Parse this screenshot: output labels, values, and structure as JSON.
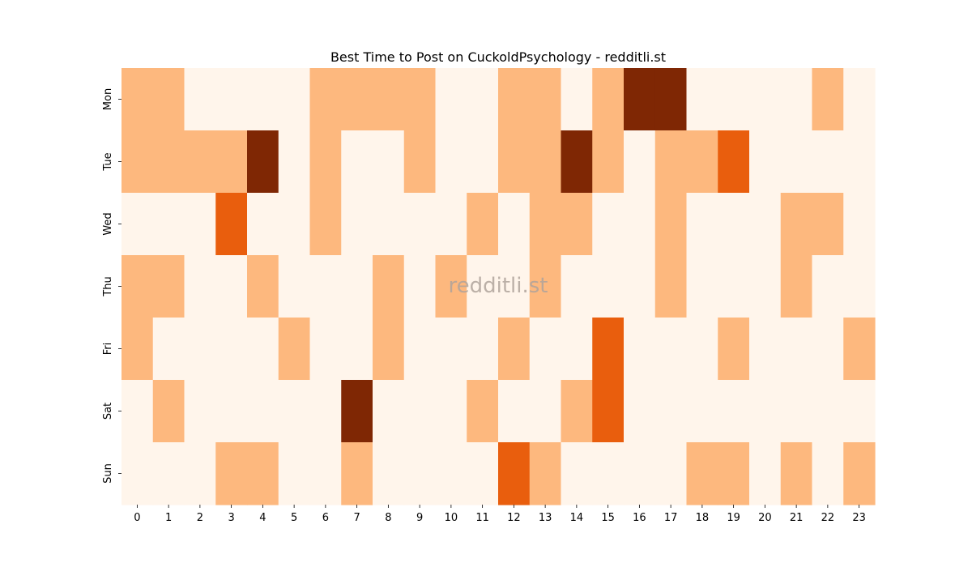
{
  "chart_data": {
    "type": "heatmap",
    "title": "Best Time to Post on CuckoldPsychology - redditli.st",
    "watermark": "redditli.st",
    "x_categories": [
      "0",
      "1",
      "2",
      "3",
      "4",
      "5",
      "6",
      "7",
      "8",
      "9",
      "10",
      "11",
      "12",
      "13",
      "14",
      "15",
      "16",
      "17",
      "18",
      "19",
      "20",
      "21",
      "22",
      "23"
    ],
    "y_categories": [
      "Mon",
      "Tue",
      "Wed",
      "Thu",
      "Fri",
      "Sat",
      "Sun"
    ],
    "xlabel": "",
    "ylabel": "",
    "levels": {
      "0": "#fff5eb",
      "1": "#fdb87e",
      "2": "#e95e0d",
      "3": "#7f2704"
    },
    "values": [
      [
        1,
        1,
        0,
        0,
        0,
        0,
        1,
        1,
        1,
        1,
        0,
        0,
        1,
        1,
        0,
        1,
        3,
        3,
        0,
        0,
        0,
        0,
        1,
        0
      ],
      [
        1,
        1,
        1,
        1,
        3,
        0,
        1,
        0,
        0,
        1,
        0,
        0,
        1,
        1,
        3,
        1,
        0,
        1,
        1,
        2,
        0,
        0,
        0,
        0
      ],
      [
        0,
        0,
        0,
        2,
        0,
        0,
        1,
        0,
        0,
        0,
        0,
        1,
        0,
        1,
        1,
        0,
        0,
        1,
        0,
        0,
        0,
        1,
        1,
        0
      ],
      [
        1,
        1,
        0,
        0,
        1,
        0,
        0,
        0,
        1,
        0,
        1,
        0,
        0,
        1,
        0,
        0,
        0,
        1,
        0,
        0,
        0,
        1,
        0,
        0
      ],
      [
        1,
        0,
        0,
        0,
        0,
        1,
        0,
        0,
        1,
        0,
        0,
        0,
        1,
        0,
        0,
        2,
        0,
        0,
        0,
        1,
        0,
        0,
        0,
        1
      ],
      [
        0,
        1,
        0,
        0,
        0,
        0,
        0,
        3,
        0,
        0,
        0,
        1,
        0,
        0,
        1,
        2,
        0,
        0,
        0,
        0,
        0,
        0,
        0,
        0
      ],
      [
        0,
        0,
        0,
        1,
        1,
        0,
        0,
        1,
        0,
        0,
        0,
        0,
        2,
        1,
        0,
        0,
        0,
        0,
        1,
        1,
        0,
        1,
        0,
        1
      ]
    ]
  }
}
